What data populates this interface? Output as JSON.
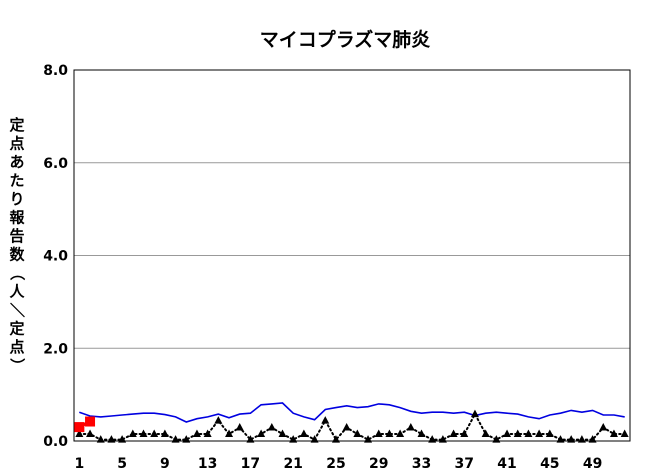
{
  "chart_data": {
    "type": "line",
    "title": "マイコプラズマ肺炎",
    "ylabel": "定点あたり報告数（人／定点）",
    "xlabel": "",
    "ylim": [
      0,
      8
    ],
    "xlim": [
      0.5,
      52.5
    ],
    "yticks": [
      "0.0",
      "2.0",
      "4.0",
      "6.0",
      "8.0"
    ],
    "ytick_values": [
      0,
      2,
      4,
      6,
      8
    ],
    "xticks": [
      "1",
      "5",
      "9",
      "13",
      "17",
      "21",
      "25",
      "29",
      "33",
      "37",
      "41",
      "45",
      "49"
    ],
    "xtick_values": [
      1,
      5,
      9,
      13,
      17,
      21,
      25,
      29,
      33,
      37,
      41,
      45,
      49
    ],
    "grid": true,
    "series": [
      {
        "color": "#0000e0",
        "style": "solid",
        "marker": "none",
        "x": [
          1,
          2,
          3,
          4,
          5,
          6,
          7,
          8,
          9,
          10,
          11,
          12,
          13,
          14,
          15,
          16,
          17,
          18,
          19,
          20,
          21,
          22,
          23,
          24,
          25,
          26,
          27,
          28,
          29,
          30,
          31,
          32,
          33,
          34,
          35,
          36,
          37,
          38,
          39,
          40,
          41,
          42,
          43,
          44,
          45,
          46,
          47,
          48,
          49,
          50,
          51,
          52
        ],
        "values": [
          0.62,
          0.54,
          0.52,
          0.54,
          0.56,
          0.58,
          0.6,
          0.6,
          0.57,
          0.52,
          0.41,
          0.48,
          0.52,
          0.58,
          0.5,
          0.58,
          0.6,
          0.78,
          0.8,
          0.82,
          0.6,
          0.52,
          0.46,
          0.68,
          0.72,
          0.76,
          0.72,
          0.74,
          0.8,
          0.78,
          0.72,
          0.64,
          0.6,
          0.62,
          0.62,
          0.6,
          0.62,
          0.55,
          0.6,
          0.62,
          0.6,
          0.58,
          0.52,
          0.48,
          0.56,
          0.6,
          0.66,
          0.62,
          0.66,
          0.56,
          0.56,
          0.52
        ]
      },
      {
        "color": "#000000",
        "style": "dotted",
        "marker": "triangle",
        "x": [
          1,
          2,
          3,
          4,
          5,
          6,
          7,
          8,
          9,
          10,
          11,
          12,
          13,
          14,
          15,
          16,
          17,
          18,
          19,
          20,
          21,
          22,
          23,
          24,
          25,
          26,
          27,
          28,
          29,
          30,
          31,
          32,
          33,
          34,
          35,
          36,
          37,
          38,
          39,
          40,
          41,
          42,
          43,
          44,
          45,
          46,
          47,
          48,
          49,
          50,
          51,
          52
        ],
        "values": [
          0.15,
          0.15,
          0.03,
          0.03,
          0.03,
          0.15,
          0.15,
          0.15,
          0.15,
          0.03,
          0.03,
          0.15,
          0.15,
          0.44,
          0.15,
          0.29,
          0.03,
          0.15,
          0.29,
          0.15,
          0.03,
          0.15,
          0.03,
          0.44,
          0.03,
          0.29,
          0.15,
          0.03,
          0.15,
          0.15,
          0.15,
          0.29,
          0.15,
          0.03,
          0.03,
          0.15,
          0.15,
          0.58,
          0.15,
          0.03,
          0.15,
          0.15,
          0.15,
          0.15,
          0.15,
          0.03,
          0.03,
          0.03,
          0.03,
          0.29,
          0.15,
          0.15
        ]
      },
      {
        "color": "#ff0000",
        "style": "solid",
        "marker": "square",
        "x": [
          1,
          2
        ],
        "values": [
          0.3,
          0.42
        ]
      }
    ]
  }
}
